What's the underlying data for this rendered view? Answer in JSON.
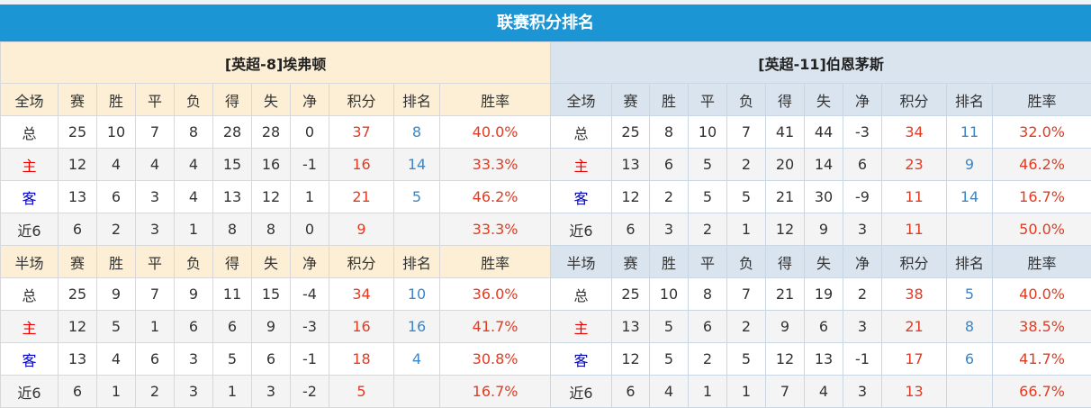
{
  "title": "联赛积分排名",
  "headers_full": [
    "全场",
    "赛",
    "胜",
    "平",
    "负",
    "得",
    "失",
    "净",
    "积分",
    "排名",
    "胜率"
  ],
  "headers_half": [
    "半场",
    "赛",
    "胜",
    "平",
    "负",
    "得",
    "失",
    "净",
    "积分",
    "排名",
    "胜率"
  ],
  "colors": {
    "title_bar": "#1b95d3",
    "points": "#e53a1f",
    "rank": "#3a86c8",
    "home_label": "#e00000",
    "away_label": "#0000c0"
  },
  "teams": [
    {
      "name": "[英超-8]埃弗顿",
      "full": [
        [
          "总",
          "25",
          "10",
          "7",
          "8",
          "28",
          "28",
          "0",
          "37",
          "8",
          "40.0%"
        ],
        [
          "主",
          "12",
          "4",
          "4",
          "4",
          "15",
          "16",
          "-1",
          "16",
          "14",
          "33.3%"
        ],
        [
          "客",
          "13",
          "6",
          "3",
          "4",
          "13",
          "12",
          "1",
          "21",
          "5",
          "46.2%"
        ],
        [
          "近6",
          "6",
          "2",
          "3",
          "1",
          "8",
          "8",
          "0",
          "9",
          "",
          "33.3%"
        ]
      ],
      "half": [
        [
          "总",
          "25",
          "9",
          "7",
          "9",
          "11",
          "15",
          "-4",
          "34",
          "10",
          "36.0%"
        ],
        [
          "主",
          "12",
          "5",
          "1",
          "6",
          "6",
          "9",
          "-3",
          "16",
          "16",
          "41.7%"
        ],
        [
          "客",
          "13",
          "4",
          "6",
          "3",
          "5",
          "6",
          "-1",
          "18",
          "4",
          "30.8%"
        ],
        [
          "近6",
          "6",
          "1",
          "2",
          "3",
          "1",
          "3",
          "-2",
          "5",
          "",
          "16.7%"
        ]
      ]
    },
    {
      "name": "[英超-11]伯恩茅斯",
      "full": [
        [
          "总",
          "25",
          "8",
          "10",
          "7",
          "41",
          "44",
          "-3",
          "34",
          "11",
          "32.0%"
        ],
        [
          "主",
          "13",
          "6",
          "5",
          "2",
          "20",
          "14",
          "6",
          "23",
          "9",
          "46.2%"
        ],
        [
          "客",
          "12",
          "2",
          "5",
          "5",
          "21",
          "30",
          "-9",
          "11",
          "14",
          "16.7%"
        ],
        [
          "近6",
          "6",
          "3",
          "2",
          "1",
          "12",
          "9",
          "3",
          "11",
          "",
          "50.0%"
        ]
      ],
      "half": [
        [
          "总",
          "25",
          "10",
          "8",
          "7",
          "21",
          "19",
          "2",
          "38",
          "5",
          "40.0%"
        ],
        [
          "主",
          "13",
          "5",
          "6",
          "2",
          "9",
          "6",
          "3",
          "21",
          "8",
          "38.5%"
        ],
        [
          "客",
          "12",
          "5",
          "2",
          "5",
          "12",
          "13",
          "-1",
          "17",
          "6",
          "41.7%"
        ],
        [
          "近6",
          "6",
          "4",
          "1",
          "1",
          "7",
          "4",
          "3",
          "13",
          "",
          "66.7%"
        ]
      ]
    }
  ]
}
